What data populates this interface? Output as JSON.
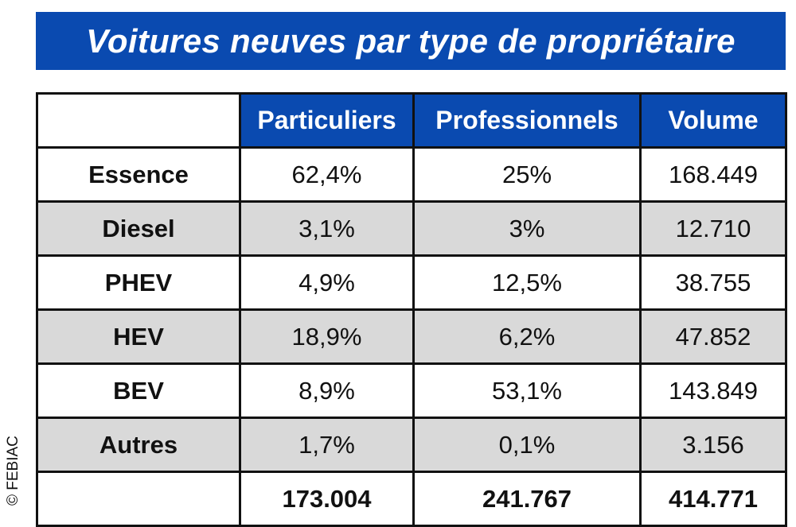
{
  "title": "Voitures neuves par type de propriétaire",
  "table": {
    "headers": [
      "",
      "Particuliers",
      "Professionnels",
      "Volume"
    ],
    "rows": [
      {
        "label": "Essence",
        "particuliers": "62,4%",
        "professionnels": "25%",
        "volume": "168.449"
      },
      {
        "label": "Diesel",
        "particuliers": "3,1%",
        "professionnels": "3%",
        "volume": "12.710"
      },
      {
        "label": "PHEV",
        "particuliers": "4,9%",
        "professionnels": "12,5%",
        "volume": "38.755"
      },
      {
        "label": "HEV",
        "particuliers": "18,9%",
        "professionnels": "6,2%",
        "volume": "47.852"
      },
      {
        "label": "BEV",
        "particuliers": "8,9%",
        "professionnels": "53,1%",
        "volume": "143.849"
      },
      {
        "label": "Autres",
        "particuliers": "1,7%",
        "professionnels": "0,1%",
        "volume": "3.156"
      }
    ],
    "totals": {
      "label": "",
      "particuliers": "173.004",
      "professionnels": "241.767",
      "volume": "414.771"
    }
  },
  "copyright": "© FEBIAC",
  "colors": {
    "header_blue": "#0a4ab0",
    "shaded_row": "#d9d9d9",
    "border": "#111111"
  }
}
